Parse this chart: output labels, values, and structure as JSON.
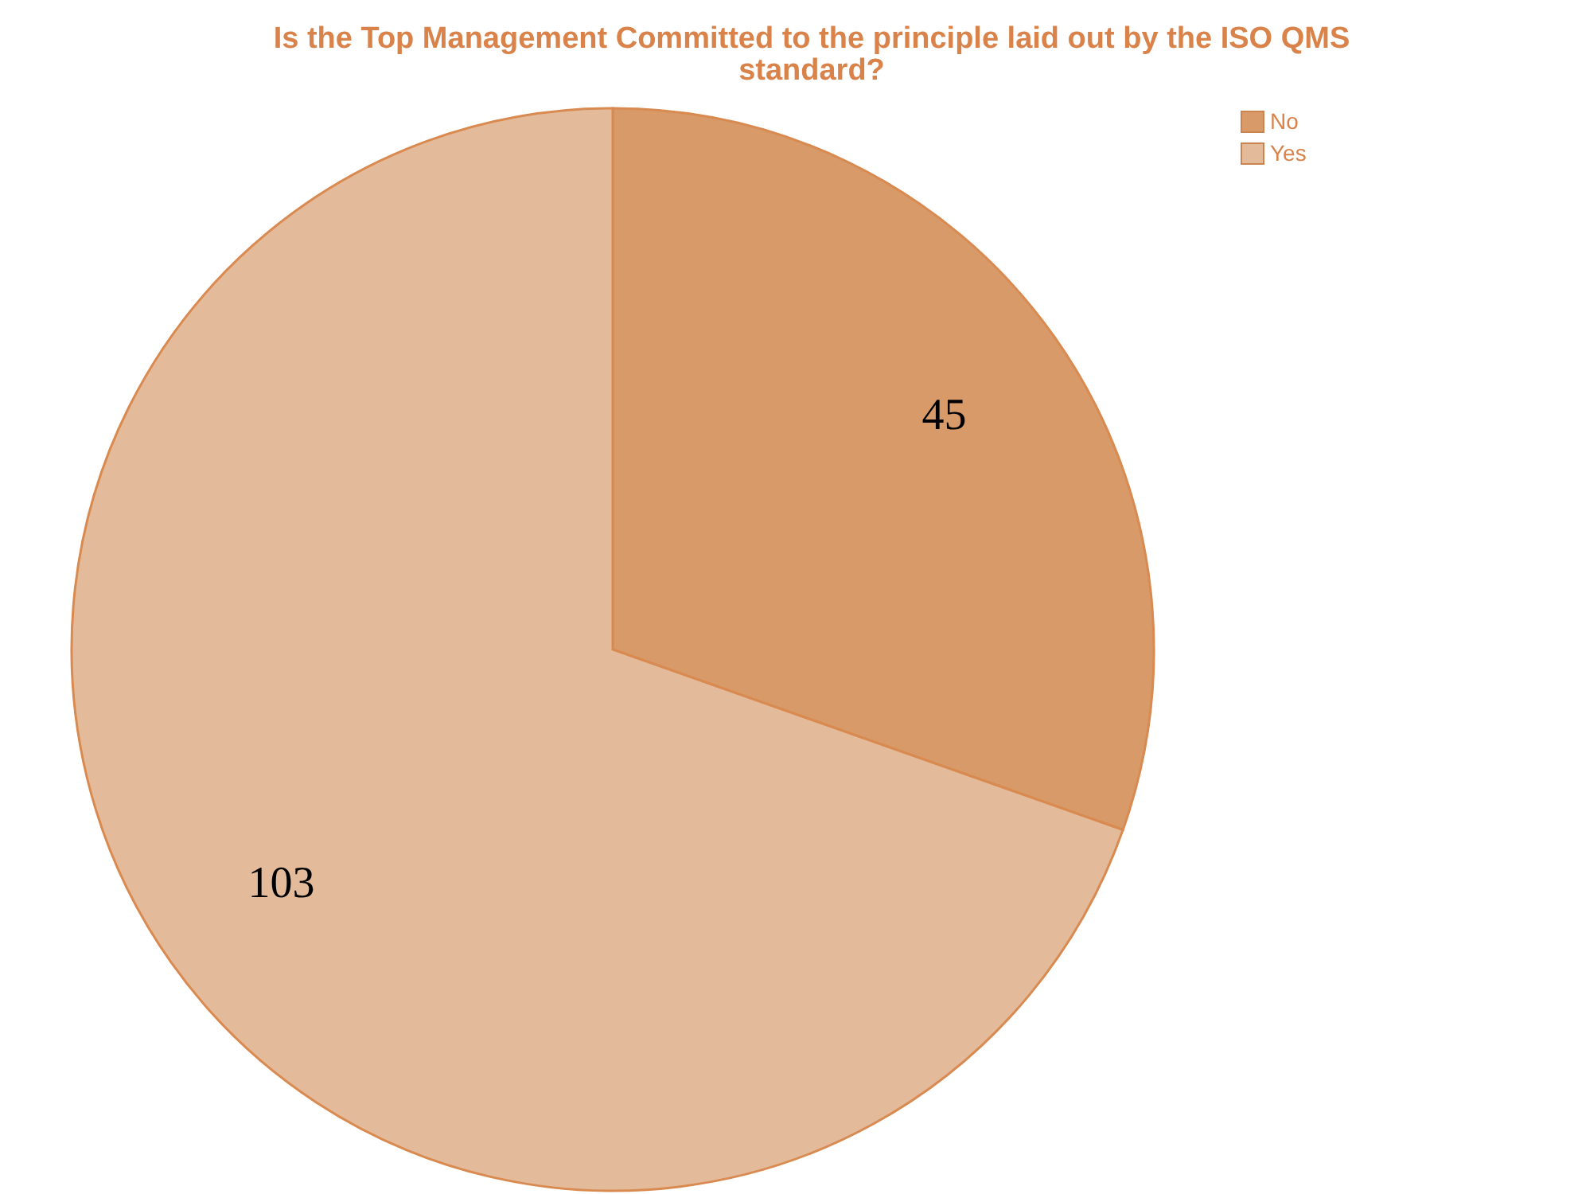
{
  "chart_data": {
    "type": "pie",
    "title": "Is the Top Management Committed to the principle laid out by the ISO QMS standard?",
    "categories": [
      "No",
      "Yes"
    ],
    "values": [
      45,
      103
    ],
    "colors": [
      "#d79a68",
      "#e4bb9a"
    ],
    "data_labels": true,
    "legend": "top right"
  }
}
